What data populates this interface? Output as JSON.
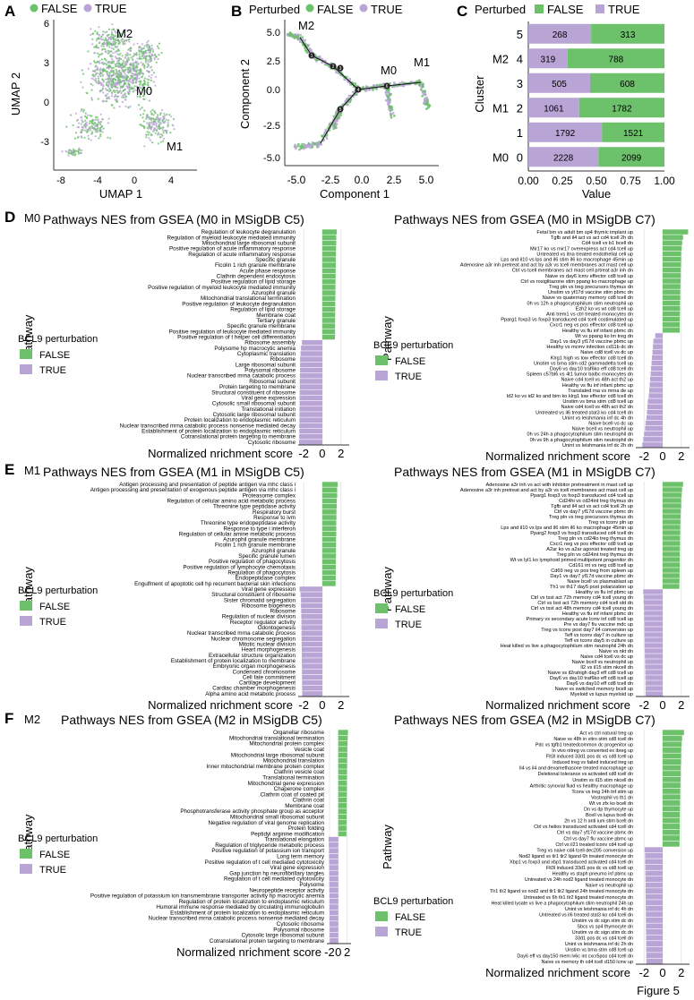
{
  "figure_label": "Figure 5",
  "colors": {
    "false": "#6cc16a",
    "true": "#b9a4d6",
    "grid": "#e8e8e8",
    "axis": "#333333",
    "text": "#222222"
  },
  "panel_a": {
    "letter": "A",
    "legend": [
      "FALSE",
      "TRUE"
    ],
    "xlabel": "UMAP 1",
    "ylabel": "UMAP 2",
    "xticks": [
      "-8",
      "-4",
      "0",
      "4"
    ],
    "yticks": [
      "6",
      "3",
      "0",
      "-3"
    ],
    "clusters": [
      "M2",
      "M0",
      "M1"
    ]
  },
  "panel_b": {
    "letter": "B",
    "legend_title": "Perturbed",
    "legend": [
      "FALSE",
      "TRUE"
    ],
    "xlabel": "Component 1",
    "ylabel": "Component 2",
    "xticks": [
      "-5.0",
      "-2.5",
      "0.0",
      "2.5",
      "5.0"
    ],
    "yticks": [
      "5.0",
      "2.5",
      "0.0",
      "-2.5",
      "-5.0"
    ],
    "states": [
      "M2",
      "M0",
      "M1"
    ],
    "branch_points": [
      "1",
      "2",
      "3",
      "4",
      "5",
      "6"
    ]
  },
  "chart_data": [
    {
      "panel": "C",
      "type": "bar",
      "title": "Perturbed",
      "legend": [
        "FALSE",
        "TRUE"
      ],
      "xlabel": "Value",
      "ylabel": "Cluster",
      "xticks": [
        "0.00",
        "0.25",
        "0.50",
        "0.75",
        "1.00"
      ],
      "categories": [
        "5",
        "4",
        "3",
        "2",
        "1",
        "0"
      ],
      "cluster_names": [
        "",
        "M2",
        "",
        "M1",
        "",
        "M0"
      ],
      "series": [
        {
          "name": "TRUE",
          "values": [
            268,
            319,
            505,
            1061,
            1792,
            2228
          ]
        },
        {
          "name": "FALSE",
          "values": [
            313,
            788,
            608,
            1782,
            1521,
            2099
          ]
        }
      ],
      "xlim": [
        0,
        1
      ]
    },
    {
      "panel": "D",
      "type": "bar",
      "cluster": "M0",
      "title": "Pathways NES from GSEA (M0 in MSigDB C5)",
      "xlabel": "Normalized nrichment score",
      "ylabel": "Pathway",
      "xticks": [
        "-2",
        "0",
        "2"
      ],
      "xlim": [
        -2.6,
        2.9
      ],
      "legend_title": "BCL9 perturbation",
      "legend": [
        "FALSE",
        "TRUE"
      ],
      "labels": [
        "Regulation of leukocyte degranulation",
        "Regulation of myeloid leukocyte mediated immunity",
        "Mitochondrial large ribosomal subunit",
        "Positive regulation of acute inflammatory response",
        "Regulation of acute inflammatory response",
        "Specific granule",
        "Ficolin 1 rich granule membrane",
        "Acute phase response",
        "Clathrin dependent endocytosis",
        "Positive regulation of lipid storage",
        "Positive regulation of myeloid leukocyte mediated immunity",
        "Azurophil granule",
        "Mitochondrial translational termination",
        "Positive regulation of leukocyte degranulation",
        "Regulation of lipid storage",
        "Membrane coat",
        "Tertiary granule",
        "Specific granule membrane",
        "Positive regulation of leukocyte mediated immunity",
        "Positive regulation of t helper cell differentiation",
        "Ribosome assembly",
        "Polysome hp macrocytic anemia",
        "Cytoplasmic translation",
        "Ribosome",
        "Large ribosomal subunit",
        "Polysomal ribosome",
        "Nuclear transcribed mrna catabolic process",
        "Ribosomal subunit",
        "Protein targeting to membrane",
        "Structural constituent of ribosome",
        "Viral gene expression",
        "Cytosolic small ribosomal subunit",
        "Translational initiation",
        "Cytosolic large ribosomal subunit",
        "Protein localization to endoplasmic reticulum",
        "Nuclear transcribed mrna catabolic process nonsense mediated decay",
        "Establishment of protein localization to endoplasmic reticulum",
        "Cotranslational protein targeting to membrane",
        "Cytosolic ribosome"
      ],
      "values": [
        1.55,
        1.5,
        1.5,
        1.48,
        1.47,
        1.45,
        1.45,
        1.43,
        1.43,
        1.42,
        1.41,
        1.41,
        1.4,
        1.39,
        1.39,
        1.38,
        1.38,
        1.37,
        1.37,
        1.36,
        -2.2,
        -2.3,
        -2.35,
        -2.4,
        -2.4,
        -2.4,
        -2.42,
        -2.43,
        -2.43,
        -2.44,
        -2.45,
        -2.45,
        -2.46,
        -2.46,
        -2.47,
        -2.48,
        -2.48,
        -2.49,
        -2.5
      ]
    },
    {
      "panel": "D",
      "type": "bar",
      "cluster": "M0",
      "title": "Pathways NES from GSEA (M0 in MSigDB C7)",
      "xlabel": "Normalized nrichment score",
      "ylabel": "Pathway",
      "xticks": [
        "-2",
        "0",
        "2"
      ],
      "xlim": [
        -2.9,
        2.9
      ],
      "legend_title": "BCL9 perturbation",
      "legend": [
        "FALSE",
        "TRUE"
      ],
      "labels": [
        "Fetal bm vs adult bm sp4 thymic implant up",
        "Tgfb and il4 act vs act cd4 tcell 2h dn",
        "Cd4 tcell vs b1 bcell dn",
        "Mir17 ko vs mir17 overexpress act cd4 tcell up",
        "Untreated vs itna treated endothelial cell up",
        "Lps and il10 vs lps and il6 stim il6 ko macrophage 45min up",
        "Adenosine a3r inh pretreat and act by a3r vs tcell membranes act mast cell up",
        "Ctrl vs tcell membranes act mast cell prtreat a3r inh dn",
        "Naive vs day6 lcmv effector cd8 tcell up",
        "Ctrl vs rosiglitazone stim ppang ko macrophage up",
        "Treg pln vs treg precursors thymus dn",
        "Unstim vs yf17d vaccine stim pbmc dn",
        "Naive vs quaternary memory cd8 tcell dn",
        "0h vs 12h a phagocytophilum stim neutrophil up",
        "Ezh2 ko vs wt cd8 tcell up",
        "Anti trem1 vs ctrl treated monocytes dn",
        "Pparg1 foxp3 vs foxp3 transduced cd4 tcell costimulated up",
        "Cxcr1 neg vs pos effector cd8 tcell up",
        "Healthy vs flu inf infant pbmc dn",
        "Wt vs ppang ko lm treg dn",
        "Day1 vs day3 yf17d vaccine pbmc up",
        "Healthy vs mcmv infection cd11b dc dn",
        "Naive cd8 tcell vs dc up",
        "Klrg1 high vs low effector cd8 tcell dn",
        "Unstim vs bma stim cd2 gammadelta tcell up",
        "Day6 vs day10 traf6ko eff cd8 tcell dn",
        "Spleen c57bl6 vs 4t1 tumor balbc monocytes dn",
        "Naive cd4 tcell vs 48h act th2 up",
        "Healthy vs flu inf infant pbmc up",
        "Translated rna vs mrna de up",
        "Id2 ko vs id2 ko and bim ko klrg1 low effector cd8 tcell dn",
        "Unstim vs bma stim cd8 tcell up",
        "Naive cd4 tcell vs 48h act th2 dn",
        "Untreated vs il6 treated stat3 ko cd4 tcell dn",
        "Unint vs leishmania inf dc 4h dn",
        "Naive bcell vs dc up",
        "Naive bcell vs neutrophil up",
        "0h vs 24h a phagocytophilum stim neutrophil dn",
        "0h vs 9h a phagocytophilum stim neutrophil dn",
        "Unint vs leishmania inf dc 2h dn"
      ],
      "values": [
        2.75,
        2.2,
        2.1,
        2.05,
        2.0,
        2.0,
        1.98,
        1.95,
        1.95,
        1.93,
        1.92,
        1.9,
        1.9,
        1.88,
        1.88,
        1.87,
        1.86,
        1.85,
        1.85,
        -0.8,
        -1.0,
        -1.05,
        -1.1,
        -1.15,
        -1.2,
        -1.25,
        -1.3,
        -1.35,
        -1.4,
        -1.45,
        -1.5,
        -1.6,
        -1.65,
        -1.7,
        -1.75,
        -1.85,
        -1.9,
        -2.0,
        -2.1,
        -2.2
      ]
    },
    {
      "panel": "E",
      "type": "bar",
      "cluster": "M1",
      "title": "Pathways NES from GSEA (M1 in MSigDB C5)",
      "xlabel": "Normalized nrichment score",
      "ylabel": "Pathway",
      "xticks": [
        "-2",
        "0",
        "2"
      ],
      "xlim": [
        -2.6,
        2.9
      ],
      "legend_title": "BCL9 perturbation",
      "legend": [
        "FALSE",
        "TRUE"
      ],
      "labels": [
        "Antigen processing and presentation of peptide antigen via mhc class i",
        "Antigen processing and presentation of exogenous peptide antigen via mhc class i",
        "Proteasome complex",
        "Regulation of cellular amino acid metabolic process",
        "Threonine type peptidase activity",
        "Respiratory burst",
        "Response to ivm",
        "Threonine type endopeptidase activity",
        "Response to type i interferon",
        "Regulation of cellular amine metabolic process",
        "Azurophil granule membrane",
        "Ficolin 1 rich granule membrane",
        "Azurophil granule",
        "Specific granule lumen",
        "Positive regulation of phagocytosis",
        "Positive regulation of lymphocyte chemotaxis",
        "Regulation of phagocytosis",
        "Endopeptidase complex",
        "Engulfment of apoptotic cell hp recurrent bacterial skin infections",
        "Viral gene expression",
        "Structural constituent of ribosome",
        "Sister chromatid segregation",
        "Ribosome biogenesis",
        "Ribosome",
        "Regulation of nuclear division",
        "Receptor regulator activity",
        "Odontogenesis",
        "Nuclear transcribed mrna catabolic process",
        "Nuclear chromosome segregation",
        "Mitotic nuclear division",
        "Heart morphogenesis",
        "Extracellular structure organization",
        "Establishment of protein localization to membrane",
        "Embryonic organ morphogenesis",
        "Condensed chromosome",
        "Cell fate commitment",
        "Cartilage development",
        "Cardiac chamber morphogenesis",
        "Alpha amino acid metabolic process"
      ],
      "values": [
        1.65,
        1.6,
        1.6,
        1.55,
        1.55,
        1.52,
        1.52,
        1.5,
        1.5,
        1.5,
        1.48,
        1.48,
        1.47,
        1.47,
        1.46,
        1.45,
        1.45,
        1.44,
        1.43,
        -2.45,
        -2.35,
        -2.3,
        -2.3,
        -2.28,
        -2.27,
        -2.26,
        -2.25,
        -2.25,
        -2.24,
        -2.23,
        -2.22,
        -2.22,
        -2.21,
        -2.2,
        -2.2,
        -2.19,
        -2.18,
        -2.18,
        -2.17
      ]
    },
    {
      "panel": "E",
      "type": "bar",
      "cluster": "M1",
      "title": "Pathways NES from GSEA (M1 in MSigDB C7)",
      "xlabel": "Normalized nrichment score",
      "ylabel": "Pathway",
      "xticks": [
        "-2",
        "0",
        "2"
      ],
      "xlim": [
        -2.9,
        2.9
      ],
      "legend_title": "BCL9 perturbation",
      "legend": [
        "FALSE",
        "TRUE"
      ],
      "labels": [
        "Adenosine a3r inh vs act with inhibitor pretreatment in mast cell up",
        "Adenosine a3r inh pretreat and act by a3r vs tcell membranes act mast cell up",
        "Pparg1 foxp3 vs foxp3 transduced cd4 tcell up",
        "Cd24hi vs cd24int treg thymus dn",
        "Tgfb and il4 act vs act cd4 tcell 2h up",
        "Ctrl vs day7 yf17d vaccine pbmc dn",
        "Treg pln vs treg precursors thymus dn",
        "Treg vs tconv pln up",
        "Lps and il10 vs lps and il6 stim il6 ko macrophage 45min up",
        "Pparg2 foxp3 vs foxp3 transduced cd4 tcell dn",
        "Treg pln vs cd24lo treg thymus dn",
        "Cxcr1 neg vs pos effector cd8 tcell up",
        "A2ar ko vs a2ar agonist treated treg up",
        "Treg pln vs cd24int treg thymus dn",
        "Wt vs lyl1 ko lymphoid primed multipotent progenitor dn",
        "Cd161 int vs neg cd8 tcell up",
        "Cd69 neg vs pos treg from spleen up",
        "Day1 vs day7 yf17d vaccine pbmc dn",
        "Naive bcell vs plasmablast up",
        "Th1 vs th17 day5 post polarization up",
        "Healthy vs flu inf pbmc up",
        "Ctrl vs tsst act 72h memory cd4 tcell young dn",
        "Ctrl vs tsst act 72h memory cd4 tcell old dn",
        "Ctrl vs tsst act 48h memory cd4 tcell young dn",
        "Healthy vs flu inf infant pbmc dn",
        "Primary vs secondary acute lcmv inf cd8 tcell up",
        "Pre vs day7 flu vaccine mdc up",
        "Treg vs tconv post day7 il4 conversion up",
        "Teff vs tconv day7 in culture up",
        "Teff vs tconv day5 in culture up",
        "Heat killed vs live a phagocytophilum stim neutrophil 24h dn",
        "Naive vs nkt dn",
        "Naive cd4 tcell vs dc up",
        "Naive bcell vs neutrophil up",
        "Il2 vs il15 stim nkcell dn",
        "Naive vs il2rahigh day3 eff cd8 tcell up",
        "Day6 vs day10 traf6ko eff cd8 tcell up",
        "Day6 vs day10 eff cd8 tcell dn",
        "Naive vs switched memory bcell up",
        "Myeloid vs lupus myeloid up"
      ],
      "values": [
        2.2,
        2.1,
        2.05,
        2.0,
        2.0,
        1.95,
        1.93,
        1.92,
        1.9,
        1.9,
        1.88,
        1.88,
        1.87,
        1.86,
        1.85,
        1.85,
        1.84,
        1.83,
        1.82,
        1.8,
        -2.1,
        -2.05,
        -2.05,
        -2.02,
        -2.0,
        -2.0,
        -1.98,
        -1.98,
        -1.97,
        -1.95,
        -1.95,
        -1.93,
        -1.92,
        -1.9,
        -1.9,
        -1.88,
        -1.87,
        -1.86,
        -1.85,
        -1.85
      ]
    },
    {
      "panel": "F",
      "type": "bar",
      "cluster": "M2",
      "title": "Pathways NES from GSEA (M2 in MSigDB C5)",
      "xlabel": "Normalized nrichment score",
      "ylabel": "Pathway",
      "xticks": [
        "-2",
        "0",
        "2"
      ],
      "xlim": [
        -2.6,
        2.9
      ],
      "legend_title": "BCL9 perturbation",
      "legend": [
        "FALSE",
        "TRUE"
      ],
      "labels": [
        "Organellar ribosome",
        "Mitochondrial translational termination",
        "Mitochondrial protein complex",
        "Vesicle coat",
        "Mitochondrial large ribosomal subunit",
        "Mitochondrial translation",
        "Inner mitochondrial membrane protein complex",
        "Clathrin vesicle coat",
        "Translational termination",
        "Mitochondrial gene expression",
        "Chaperone complex",
        "Clathrin coat of coated pit",
        "Clathrin coat",
        "Membrane coat",
        "Phosphotransferase activity phosphate group as acceptor",
        "Mitochondrial small ribosomal subunit",
        "Negative regulation of viral genome replication",
        "Protein folding",
        "Peptidyl arginine modification",
        "Translational elongation",
        "Regulation of triglyceride metabolic process",
        "Positive regulation of potassium ion transport",
        "Long term memory",
        "Positive regulation of t cell mediated cytotoxicity",
        "Viral gene expression",
        "Gap junction hp neurofibrillary tangles",
        "Regulation of t cell mediated cytotoxicity",
        "Polysome",
        "Neuropeptide receptor activity",
        "Positive regulation of potassium ion transmembrane transporter activity hp macrocytic anemia",
        "Regulation of protein localization to endoplasmic reticulum",
        "Humoral immune response mediated by circulating immunoglobulin",
        "Establishment of protein localization to endoplasmic reticulum",
        "Nuclear transcribed mrna catabolic process nonsense mediated decay",
        "Cytosolic ribosome",
        "Polysomal ribosome",
        "Cytosolic large ribosomal subunit",
        "Cotranslational protein targeting to membrane"
      ],
      "values": [
        2.2,
        2.15,
        2.1,
        2.05,
        2.05,
        2.0,
        2.0,
        1.98,
        1.97,
        1.95,
        1.95,
        1.93,
        1.92,
        1.9,
        1.9,
        1.88,
        1.87,
        1.86,
        1.85,
        -2.2,
        -2.15,
        -2.12,
        -2.1,
        -2.08,
        -2.07,
        -2.06,
        -2.05,
        -2.04,
        -2.03,
        -2.02,
        -2.0,
        -2.0,
        -1.99,
        -1.98,
        -1.97,
        -1.96,
        -1.95,
        -1.94
      ]
    },
    {
      "panel": "F",
      "type": "bar",
      "cluster": "M2",
      "title": "Pathways NES from GSEA (M2 in MSigDB C7)",
      "xlabel": "Normalized nrichment score",
      "ylabel": "Pathway",
      "xticks": [
        "-2",
        "0",
        "2"
      ],
      "xlim": [
        -2.9,
        2.9
      ],
      "legend_title": "BCL9 perturbation",
      "legend": [
        "FALSE",
        "TRUE"
      ],
      "labels": [
        "Act vs ctrl natural treg up",
        "Naive vs 48h in vitro stim cd8 tcell dn",
        "Pdc vs tgfb1 treatedcommon dc progenitor up",
        "In vivo nitreg vs converted ex ibreg up",
        "Flt3l induced 33d1 pos dc vs cd8 tcell up",
        "Induced treg vs failed induced treg up",
        "Il4 vs il4 and dexamethasone treated macrophage up",
        "Deletional tolerance vs activated cd8 tcell dn",
        "Unstim vs il15 stim nkcell dn",
        "Arthritic synovial fluid vs healthy macrophage up",
        "Tconv vs treg 24h tnf stim up",
        "Vostrophil vs th1 dn",
        "Wt vs zfx ko bcell dn",
        "Dn vs dp thymocyte up",
        "Bcell vs lupus bcell dn",
        "2h vs 12 h anti ium stim bcell dn",
        "Ctrl vs helios transduced activated cd4 tcell dn",
        "Ctrl vs day7 yf17d vaccine pbmc dn",
        "Ctrl vs day7 flu vaccine pbmc up",
        "Ctrl vs il21 treated tconv cd4 tcell up",
        "Treg vs naive cd4 tcell dec205 conversion up",
        "Nod2 ligand vs tlr1 tlr2 ligand 6h treated monocyte dn",
        "Xbp1 vs foxp3 and xbp1 transduced activated cd4 tcell dn",
        "Flt3l induced 33d1 pos dc vs cd8 tcell up",
        "Healthy vs staph pneumo inf pbmc up",
        "Untreated vs 24h nod2 ligand treated monocyte dn",
        "Naive vs neutrophil up",
        "Tlr1 tlr2 ligand vs nod2 and tlr1 tlr2 ligand 24h treated monocyte dn",
        "Untreated vs 6h tlr1 tlr2 ligand treated monocyte dn",
        "Heat killed lysate vs live a phagocytophilum stim neutrophil 24h up",
        "Unint vs leishmania inf dc 4h dn",
        "Untreated vs il6 treated stat3 ko cd4 tcell dn",
        "Unstim vs dc sign stim dc dn",
        "Sbcs vs sp4 thymocyte dn",
        "Unstim vs dc sign stim dc dn",
        "33d1 pos dc vs cd4 tcell dn",
        "Unint vs leishmania inf dc 2h dn",
        "Unstim vs bma stim cd8 tcell up",
        "Day6 eff vs day150 mem lv6c int cxcr5pos cd4 tcell dn",
        "Naive vs memory th cd4 tcell d150 lcmv up"
      ],
      "values": [
        2.3,
        2.1,
        2.05,
        2.0,
        2.0,
        1.98,
        1.95,
        1.95,
        1.93,
        1.92,
        1.9,
        1.9,
        1.88,
        1.87,
        1.86,
        1.85,
        1.85,
        1.84,
        1.83,
        1.82,
        -1.95,
        -1.9,
        -1.9,
        -1.88,
        -1.87,
        -1.86,
        -1.85,
        -1.85,
        -1.84,
        -1.83,
        -1.82,
        -1.82,
        -1.81,
        -1.8,
        -1.8,
        -1.79,
        -1.78,
        -1.78,
        -1.77,
        -1.76
      ]
    }
  ]
}
